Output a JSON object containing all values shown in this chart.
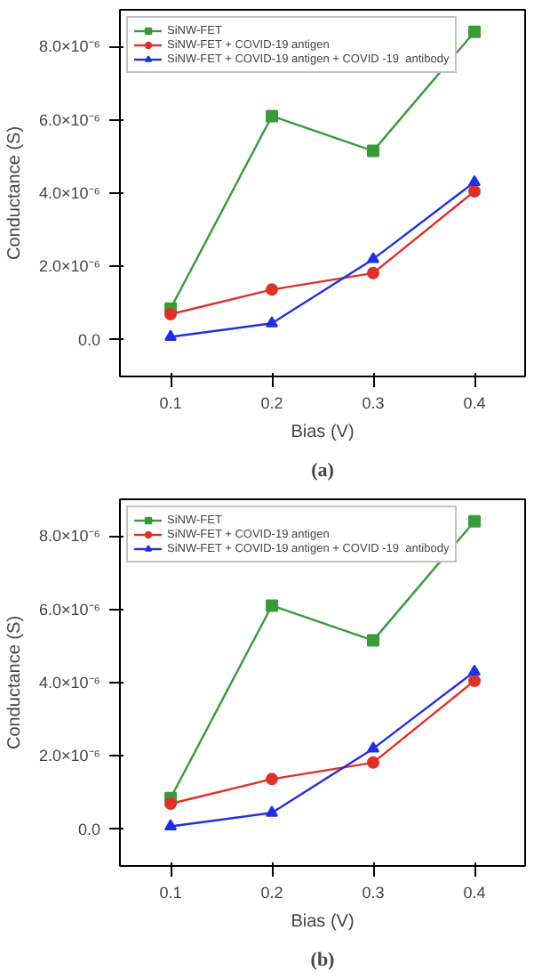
{
  "chart_data": [
    {
      "type": "line",
      "xlabel": "Bias (V)",
      "ylabel": "Conductance (S)",
      "annotations": [
        "(a)"
      ],
      "x": [
        0.1,
        0.2,
        0.3,
        0.4
      ],
      "xlim": [
        0.05,
        0.45
      ],
      "xticks": [
        0.1,
        0.2,
        0.3,
        0.4
      ],
      "ylim": [
        -1e-06,
        9e-06
      ],
      "yticks": [
        {
          "value": 0,
          "label": "0.0"
        },
        {
          "value": 2e-06,
          "label": "2.0×10⁻⁶"
        },
        {
          "value": 4e-06,
          "label": "4.0×10⁻⁶"
        },
        {
          "value": 6e-06,
          "label": "6.0×10⁻⁶"
        },
        {
          "value": 8e-06,
          "label": "8.0×10⁻⁶"
        }
      ],
      "grid": false,
      "legend": "top left",
      "series": [
        {
          "name": "SiNW-FET",
          "color": "#3a9a3a",
          "marker": "square",
          "values": [
            8.5e-07,
            6.1e-06,
            5.15e-06,
            8.4e-06
          ]
        },
        {
          "name": "SiNW-FET + COVID-19 antigen",
          "color": "#e0302a",
          "marker": "circle",
          "values": [
            7e-07,
            1.37e-06,
            1.82e-06,
            4.05e-06
          ]
        },
        {
          "name": "SiNW-FET + COVID-19 antigen + COVID -19  antibody",
          "color": "#2030e0",
          "marker": "triangle",
          "values": [
            8e-08,
            4.5e-07,
            2.2e-06,
            4.3e-06
          ]
        }
      ]
    },
    {
      "type": "line",
      "xlabel": "Bias (V)",
      "ylabel": "Conductance (S)",
      "annotations": [
        "(b)"
      ],
      "x": [
        0.1,
        0.2,
        0.3,
        0.4
      ],
      "xlim": [
        0.05,
        0.45
      ],
      "xticks": [
        0.1,
        0.2,
        0.3,
        0.4
      ],
      "ylim": [
        -1e-06,
        9e-06
      ],
      "yticks": [
        {
          "value": 0,
          "label": "0.0"
        },
        {
          "value": 2e-06,
          "label": "2.0×10⁻⁶"
        },
        {
          "value": 4e-06,
          "label": "4.0×10⁻⁶"
        },
        {
          "value": 6e-06,
          "label": "6.0×10⁻⁶"
        },
        {
          "value": 8e-06,
          "label": "8.0×10⁻⁶"
        }
      ],
      "grid": false,
      "legend": "top left",
      "series": [
        {
          "name": "SiNW-FET",
          "color": "#3a9a3a",
          "marker": "square",
          "values": [
            8.5e-07,
            6.1e-06,
            5.15e-06,
            8.4e-06
          ]
        },
        {
          "name": "SiNW-FET + COVID-19 antigen",
          "color": "#e0302a",
          "marker": "circle",
          "values": [
            7e-07,
            1.37e-06,
            1.82e-06,
            4.05e-06
          ]
        },
        {
          "name": "SiNW-FET + COVID-19 antigen + COVID -19  antibody",
          "color": "#2030e0",
          "marker": "triangle",
          "values": [
            8e-08,
            4.5e-07,
            2.2e-06,
            4.3e-06
          ]
        }
      ]
    }
  ]
}
